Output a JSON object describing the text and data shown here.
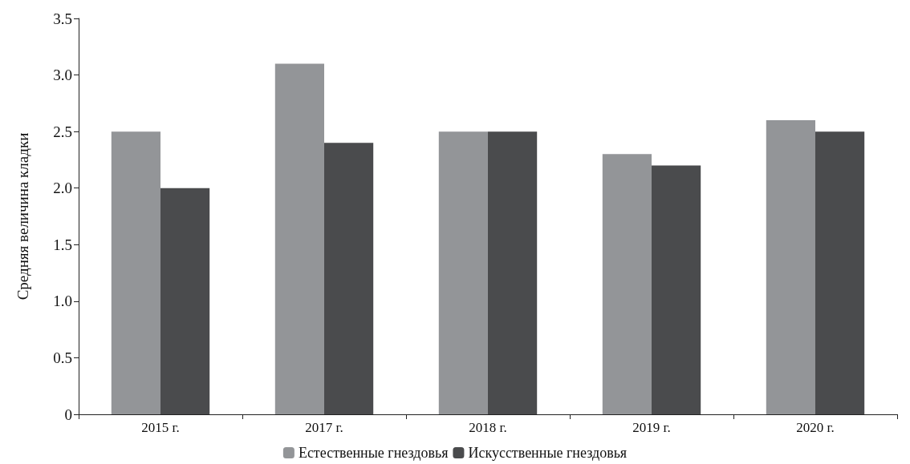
{
  "chart_data": {
    "type": "bar",
    "ylabel": "Средняя величина кладки",
    "categories": [
      "2015 г.",
      "2017 г.",
      "2018 г.",
      "2019 г.",
      "2020 г."
    ],
    "series": [
      {
        "name": "Естественные гнездовья",
        "color": "#939598",
        "values": [
          2.5,
          3.1,
          2.5,
          2.3,
          2.6
        ]
      },
      {
        "name": "Искусственные гнездовья",
        "color": "#4a4b4d",
        "values": [
          2.0,
          2.4,
          2.5,
          2.2,
          2.5
        ]
      }
    ],
    "ylim": [
      0,
      3.5
    ],
    "yticks": [
      0,
      {
        "value": 0.5,
        "label": "0.5"
      },
      {
        "value": 1,
        "label": "1.0"
      },
      {
        "value": 1.5,
        "label": "1.5"
      },
      {
        "value": 2,
        "label": "2.0"
      },
      {
        "value": 2.5,
        "label": "2.5"
      },
      {
        "value": 3,
        "label": "3.0"
      },
      {
        "value": 3.5,
        "label": "3.5"
      }
    ],
    "grid": false,
    "legend": "bottom"
  }
}
